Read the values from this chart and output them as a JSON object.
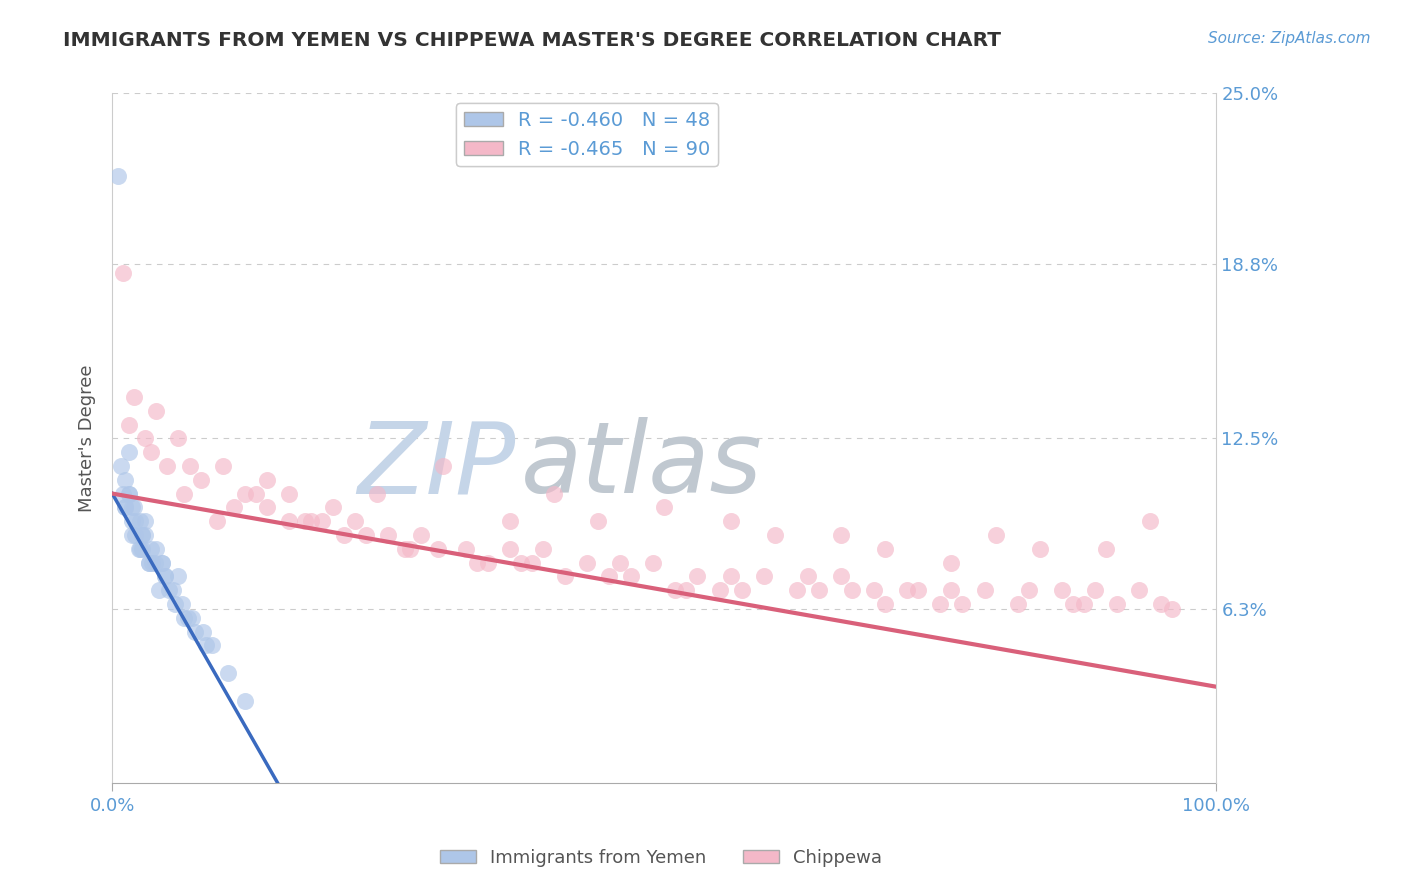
{
  "title": "IMMIGRANTS FROM YEMEN VS CHIPPEWA MASTER'S DEGREE CORRELATION CHART",
  "source_text": "Source: ZipAtlas.com",
  "ylabel": "Master's Degree",
  "legend_label1": "Immigrants from Yemen",
  "legend_label2": "Chippewa",
  "r1": -0.46,
  "n1": 48,
  "r2": -0.465,
  "n2": 90,
  "color1": "#aec6e8",
  "color2": "#f4b8c8",
  "line_color1": "#3a6abf",
  "line_color2": "#d9607a",
  "ytick_values": [
    0.0,
    6.3,
    12.5,
    18.8,
    25.0
  ],
  "ytick_labels": [
    "",
    "6.3%",
    "12.5%",
    "18.8%",
    "25.0%"
  ],
  "background_color": "#ffffff",
  "grid_color": "#cccccc",
  "title_color": "#333333",
  "axis_label_color": "#5b9bd5",
  "tick_label_color": "#5b9bd5",
  "ylabel_color": "#555555",
  "yemen_x": [
    0.5,
    1.5,
    1.0,
    2.5,
    3.5,
    1.2,
    1.8,
    4.5,
    6.0,
    2.0,
    3.0,
    5.5,
    7.5,
    2.7,
    4.0,
    9.0,
    1.5,
    2.5,
    3.3,
    6.5,
    4.8,
    0.8,
    1.8,
    4.2,
    8.5,
    5.1,
    1.2,
    2.1,
    5.7,
    6.9,
    1.5,
    3.0,
    4.5,
    8.2,
    2.7,
    3.6,
    10.5,
    1.8,
    2.4,
    6.3,
    3.9,
    12.0,
    2.1,
    4.8,
    7.2,
    1.2,
    2.7,
    3.3
  ],
  "yemen_y": [
    22.0,
    12.0,
    10.5,
    9.5,
    8.5,
    11.0,
    9.0,
    8.0,
    7.5,
    10.0,
    9.5,
    7.0,
    5.5,
    9.0,
    8.5,
    5.0,
    10.5,
    8.5,
    8.0,
    6.0,
    7.5,
    11.5,
    10.0,
    7.0,
    5.0,
    7.0,
    10.0,
    9.5,
    6.5,
    6.0,
    10.5,
    9.0,
    8.0,
    5.5,
    9.0,
    8.0,
    4.0,
    9.5,
    8.5,
    6.5,
    8.0,
    3.0,
    9.0,
    7.5,
    6.0,
    10.0,
    8.5,
    8.0
  ],
  "chippewa_x": [
    1.0,
    2.0,
    4.0,
    6.0,
    8.0,
    10.0,
    12.0,
    14.0,
    16.0,
    18.0,
    20.0,
    24.0,
    30.0,
    36.0,
    40.0,
    44.0,
    50.0,
    56.0,
    60.0,
    66.0,
    70.0,
    76.0,
    80.0,
    84.0,
    90.0,
    94.0,
    1.5,
    3.5,
    6.5,
    9.5,
    13.0,
    16.0,
    19.0,
    23.0,
    26.5,
    29.5,
    32.0,
    36.0,
    39.0,
    43.0,
    46.0,
    49.0,
    53.0,
    56.0,
    59.0,
    63.0,
    66.0,
    69.0,
    73.0,
    76.0,
    79.0,
    83.0,
    86.0,
    89.0,
    93.0,
    96.0,
    5.0,
    11.0,
    17.5,
    21.0,
    25.0,
    28.0,
    33.0,
    37.0,
    41.0,
    47.0,
    51.0,
    55.0,
    62.0,
    67.0,
    72.0,
    77.0,
    82.0,
    87.0,
    91.0,
    95.0,
    3.0,
    7.0,
    14.0,
    22.0,
    27.0,
    34.0,
    38.0,
    45.0,
    52.0,
    57.0,
    64.0,
    70.0,
    75.0,
    88.0
  ],
  "chippewa_y": [
    18.5,
    14.0,
    13.5,
    12.5,
    11.0,
    11.5,
    10.5,
    11.0,
    10.5,
    9.5,
    10.0,
    10.5,
    11.5,
    9.5,
    10.5,
    9.5,
    10.0,
    9.5,
    9.0,
    9.0,
    8.5,
    8.0,
    9.0,
    8.5,
    8.5,
    9.5,
    13.0,
    12.0,
    10.5,
    9.5,
    10.5,
    9.5,
    9.5,
    9.0,
    8.5,
    8.5,
    8.5,
    8.5,
    8.5,
    8.0,
    8.0,
    8.0,
    7.5,
    7.5,
    7.5,
    7.5,
    7.5,
    7.0,
    7.0,
    7.0,
    7.0,
    7.0,
    7.0,
    7.0,
    7.0,
    6.3,
    11.5,
    10.0,
    9.5,
    9.0,
    9.0,
    9.0,
    8.0,
    8.0,
    7.5,
    7.5,
    7.0,
    7.0,
    7.0,
    7.0,
    7.0,
    6.5,
    6.5,
    6.5,
    6.5,
    6.5,
    12.5,
    11.5,
    10.0,
    9.5,
    8.5,
    8.0,
    8.0,
    7.5,
    7.0,
    7.0,
    7.0,
    6.5,
    6.5,
    6.5
  ],
  "yemen_line": [
    0,
    15,
    10.5,
    0.0
  ],
  "chippewa_line": [
    0,
    100,
    10.5,
    3.5
  ],
  "watermark_zip_color": "#c5d5e8",
  "watermark_atlas_color": "#c0c8d0"
}
